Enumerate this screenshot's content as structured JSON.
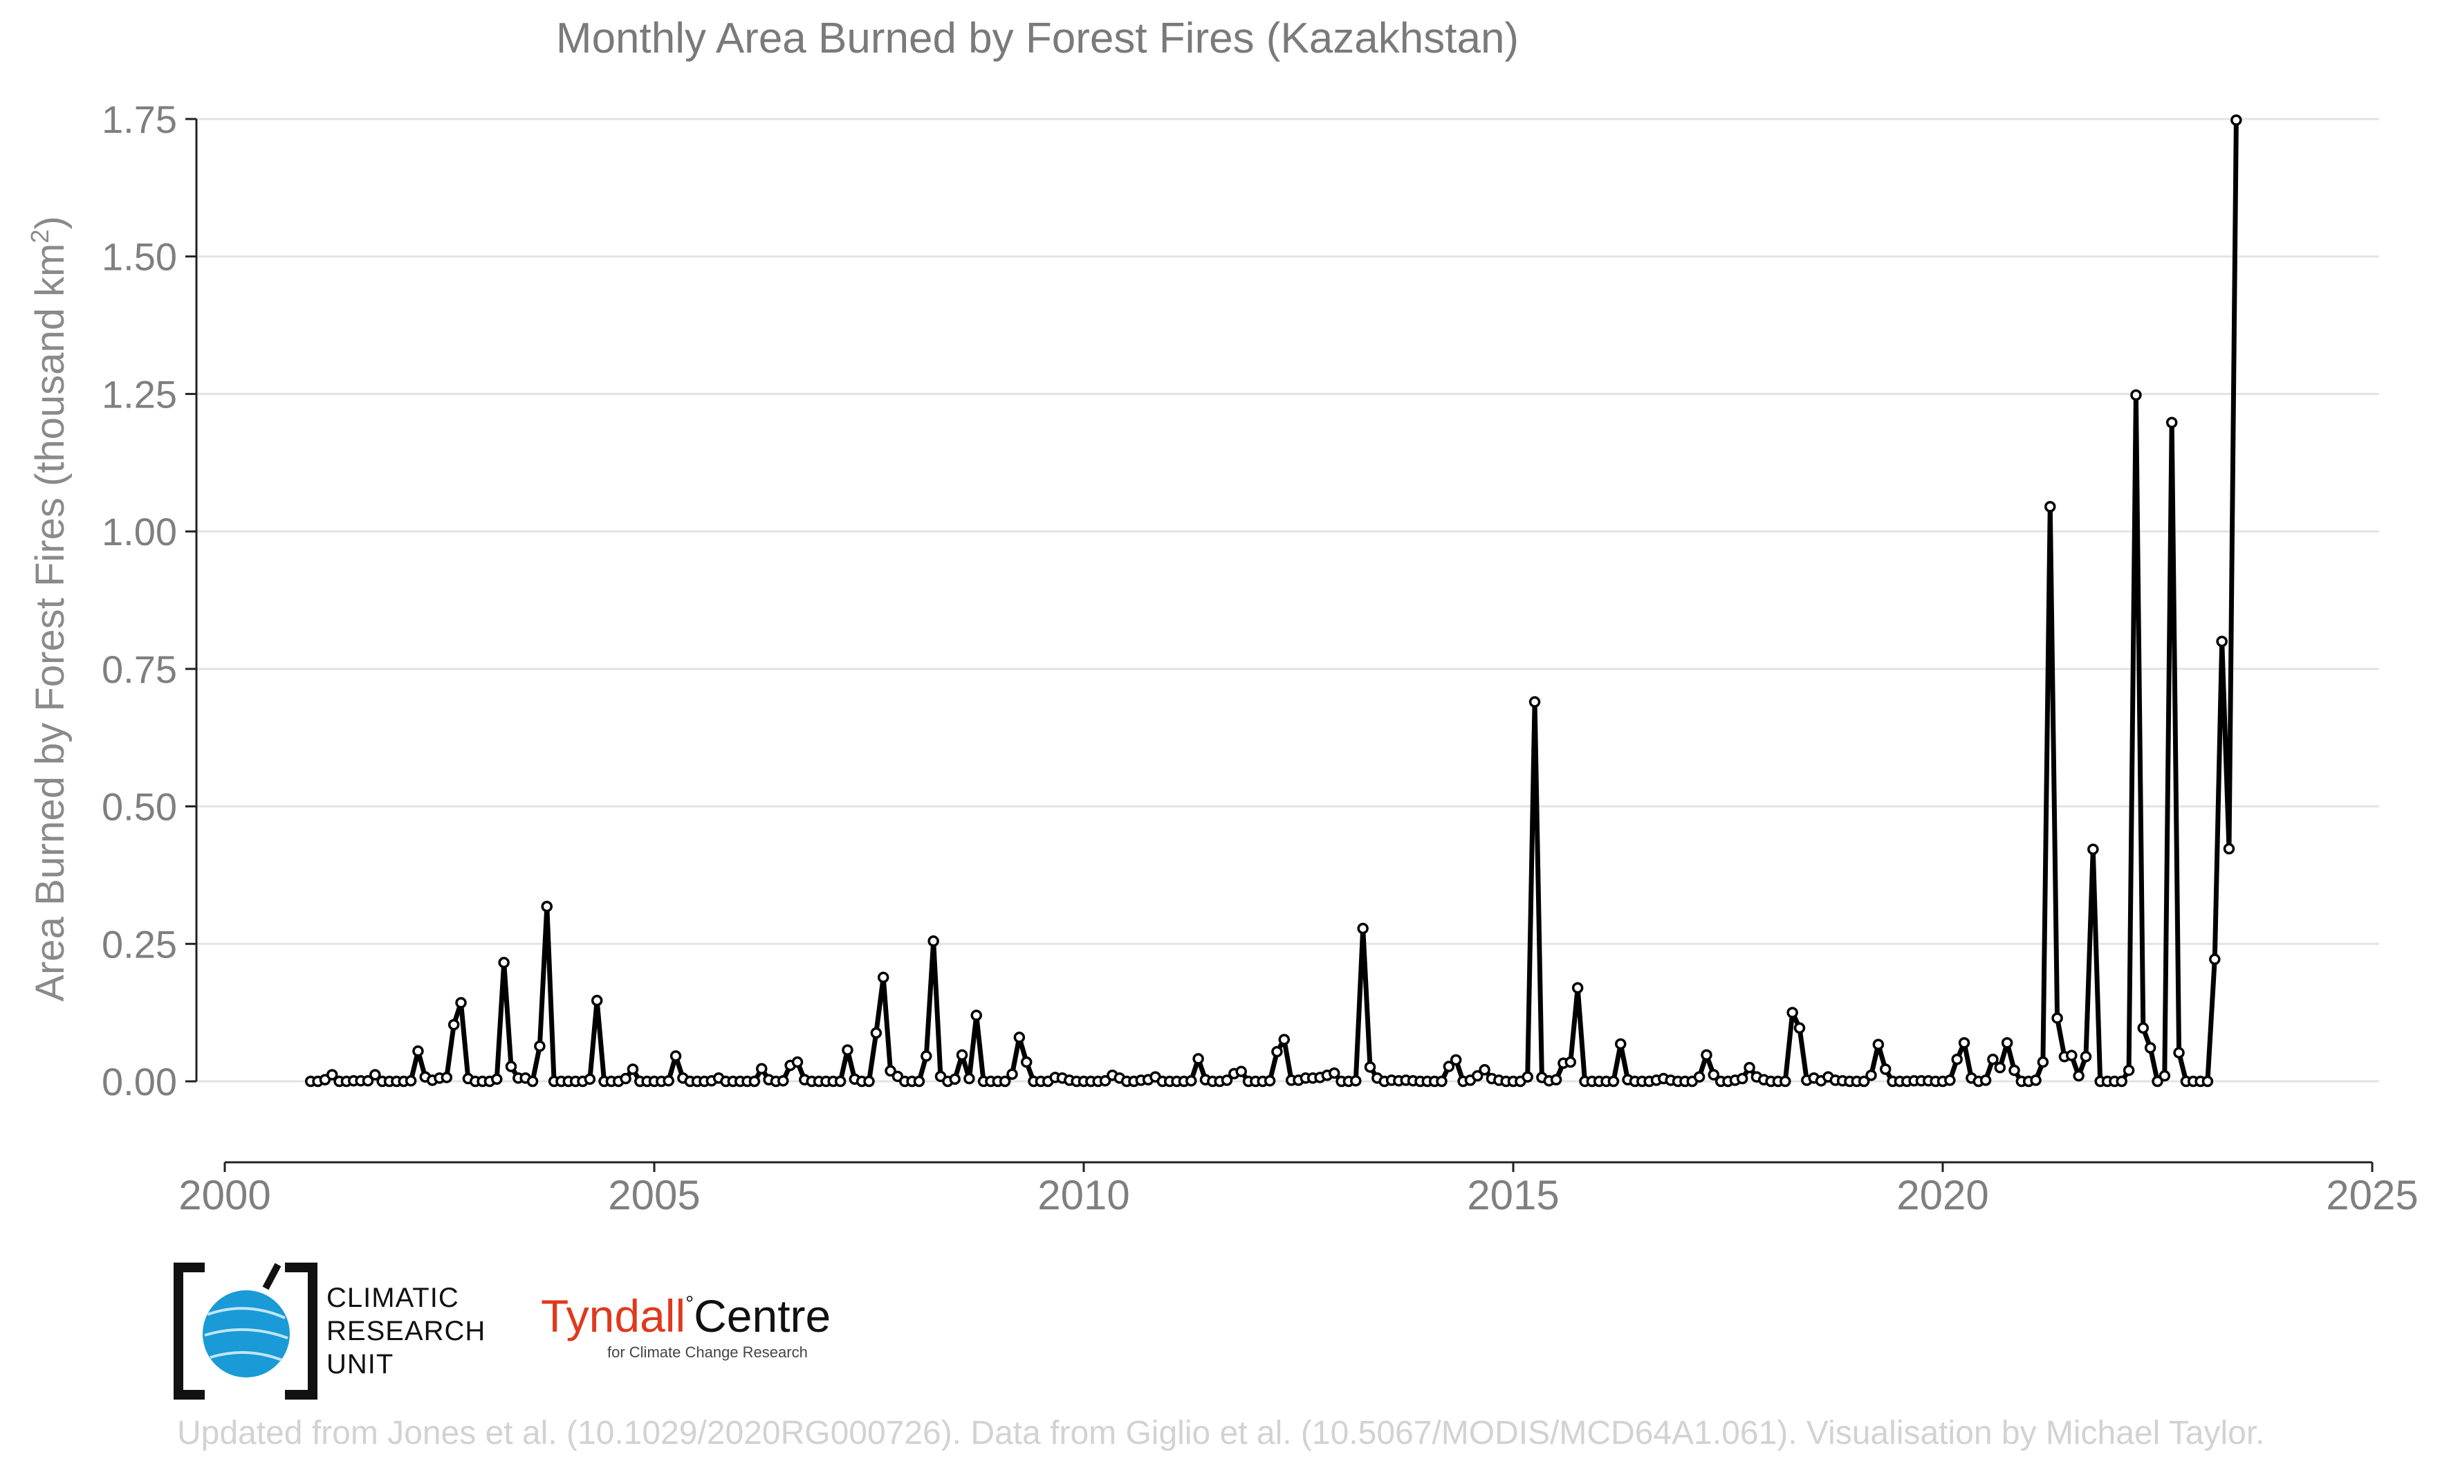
{
  "chart_data": {
    "type": "line",
    "title": "Monthly Area Burned by Forest Fires (Kazakhstan)",
    "ylabel_main": "Area Burned by Forest Fires (thousand km",
    "ylabel_sup": "2",
    "ylabel_end": ")",
    "xlabel": "",
    "xlim": [
      2000,
      2025
    ],
    "ylim": [
      -0.14,
      1.75
    ],
    "xticks": [
      2000,
      2005,
      2010,
      2015,
      2020,
      2025
    ],
    "xtick_labels": [
      "2000",
      "2005",
      "2010",
      "2015",
      "2020",
      "2025"
    ],
    "yticks": [
      0.0,
      0.25,
      0.5,
      0.75,
      1.0,
      1.25,
      1.5,
      1.75
    ],
    "ytick_labels": [
      "0.00",
      "0.25",
      "0.50",
      "0.75",
      "1.00",
      "1.25",
      "1.50",
      "1.75"
    ],
    "grid": true,
    "start_year": 2001,
    "series": [
      {
        "values": [
          0,
          0,
          0.003,
          0.012,
          0,
          0,
          0.001,
          0.001,
          0.001,
          0.012,
          0,
          0,
          0,
          0,
          0.001,
          0.055,
          0.008,
          0.002,
          0.006,
          0.007,
          0.103,
          0.143,
          0.005,
          0,
          0,
          0,
          0.004,
          0.216,
          0.027,
          0.006,
          0.006,
          0,
          0.064,
          0.318,
          0,
          0,
          0,
          0,
          0,
          0.004,
          0.147,
          0,
          0,
          0,
          0.005,
          0.022,
          0,
          0,
          0,
          0,
          0.001,
          0.046,
          0.006,
          0,
          0,
          0,
          0.001,
          0.006,
          0,
          0,
          0,
          0,
          0,
          0.023,
          0.003,
          0,
          0.001,
          0.029,
          0.035,
          0.003,
          0,
          0,
          0,
          0,
          0,
          0.057,
          0.004,
          0,
          0,
          0.088,
          0.189,
          0.019,
          0.009,
          0,
          0,
          0,
          0.046,
          0.255,
          0.009,
          0,
          0.004,
          0.048,
          0.005,
          0.12,
          0,
          0,
          0,
          0,
          0.013,
          0.08,
          0.035,
          0,
          0,
          0,
          0.007,
          0.006,
          0.002,
          0,
          0,
          0,
          0,
          0.001,
          0.011,
          0.006,
          0,
          0,
          0.002,
          0.003,
          0.008,
          0,
          0,
          0,
          0,
          0.001,
          0.041,
          0.003,
          0,
          0,
          0.002,
          0.014,
          0.018,
          0,
          0,
          0,
          0.001,
          0.054,
          0.076,
          0.002,
          0.002,
          0.006,
          0.006,
          0.007,
          0.011,
          0.015,
          0,
          0,
          0.001,
          0.278,
          0.026,
          0.006,
          0,
          0.002,
          0.001,
          0.002,
          0.001,
          0,
          0,
          0,
          0,
          0.027,
          0.039,
          0,
          0.002,
          0.01,
          0.021,
          0.005,
          0.002,
          0,
          0,
          0,
          0.008,
          0.69,
          0.007,
          0.001,
          0.003,
          0.033,
          0.035,
          0.17,
          0,
          0,
          0,
          0,
          0,
          0.068,
          0.003,
          0,
          0,
          0,
          0.002,
          0.005,
          0.002,
          0,
          0,
          0,
          0.008,
          0.048,
          0.012,
          0,
          0,
          0.002,
          0.005,
          0.025,
          0.008,
          0.003,
          0,
          0,
          0,
          0.125,
          0.097,
          0.002,
          0.006,
          0.001,
          0.008,
          0.002,
          0.001,
          0,
          0,
          0,
          0.011,
          0.067,
          0.022,
          0,
          0,
          0,
          0.001,
          0.001,
          0.001,
          0,
          0,
          0.002,
          0.04,
          0.07,
          0.006,
          0,
          0.002,
          0.04,
          0.025,
          0.07,
          0.02,
          0,
          0,
          0.002,
          0.035,
          1.045,
          0.115,
          0.045,
          0.047,
          0.01,
          0.045,
          0.422,
          0,
          0,
          0,
          0,
          0.02,
          1.248,
          0.097,
          0.061,
          0,
          0.01,
          1.198,
          0.052,
          0,
          0,
          0,
          0,
          0.222,
          0.8,
          0.423,
          1.748
        ]
      }
    ]
  },
  "logos": {
    "cru_line1": "CLIMATIC",
    "cru_line2": "RESEARCH",
    "cru_line3": "UNIT",
    "tyndall_red": "Tyndall",
    "tyndall_degree": "°",
    "tyndall_black": "Centre",
    "tyndall_sub": "for Climate Change Research"
  },
  "footer": "Updated from Jones et al. (10.1029/2020RG000726). Data from Giglio et al. (10.5067/MODIS/MCD64A1.061). Visualisation by Michael Taylor.",
  "colors": {
    "line": "#000000",
    "marker_fill": "#ffffff",
    "grid": "#e3e3e3",
    "tyndall_red": "#e0391c",
    "cru_blue": "#1a9ad6"
  }
}
